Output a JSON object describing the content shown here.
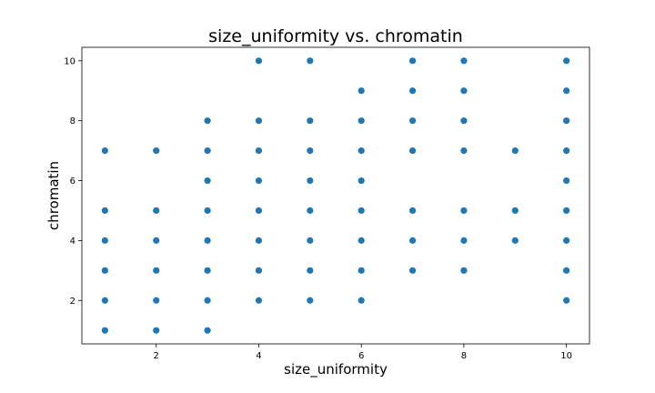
{
  "chart_data": {
    "type": "scatter",
    "title": "size_uniformity vs. chromatin",
    "xlabel": "size_uniformity",
    "ylabel": "chromatin",
    "xlim": [
      0.55,
      10.45
    ],
    "ylim": [
      0.55,
      10.45
    ],
    "x_ticks": [
      2,
      4,
      6,
      8,
      10
    ],
    "y_ticks": [
      2,
      4,
      6,
      8,
      10
    ],
    "x_tick_labels": [
      "2",
      "4",
      "6",
      "8",
      "10"
    ],
    "y_tick_labels": [
      "2",
      "4",
      "6",
      "8",
      "10"
    ],
    "grid": false,
    "legend": "none",
    "marker_color": "#1f77b4",
    "points": [
      [
        1,
        1
      ],
      [
        1,
        2
      ],
      [
        1,
        3
      ],
      [
        1,
        4
      ],
      [
        1,
        5
      ],
      [
        1,
        7
      ],
      [
        2,
        1
      ],
      [
        2,
        2
      ],
      [
        2,
        3
      ],
      [
        2,
        4
      ],
      [
        2,
        5
      ],
      [
        2,
        7
      ],
      [
        3,
        1
      ],
      [
        3,
        2
      ],
      [
        3,
        3
      ],
      [
        3,
        4
      ],
      [
        3,
        5
      ],
      [
        3,
        6
      ],
      [
        3,
        7
      ],
      [
        3,
        8
      ],
      [
        4,
        2
      ],
      [
        4,
        3
      ],
      [
        4,
        4
      ],
      [
        4,
        5
      ],
      [
        4,
        6
      ],
      [
        4,
        7
      ],
      [
        4,
        8
      ],
      [
        4,
        10
      ],
      [
        5,
        2
      ],
      [
        5,
        3
      ],
      [
        5,
        4
      ],
      [
        5,
        5
      ],
      [
        5,
        6
      ],
      [
        5,
        7
      ],
      [
        5,
        8
      ],
      [
        5,
        10
      ],
      [
        6,
        2
      ],
      [
        6,
        3
      ],
      [
        6,
        4
      ],
      [
        6,
        5
      ],
      [
        6,
        6
      ],
      [
        6,
        7
      ],
      [
        6,
        8
      ],
      [
        6,
        9
      ],
      [
        7,
        3
      ],
      [
        7,
        4
      ],
      [
        7,
        5
      ],
      [
        7,
        7
      ],
      [
        7,
        8
      ],
      [
        7,
        9
      ],
      [
        7,
        10
      ],
      [
        8,
        3
      ],
      [
        8,
        4
      ],
      [
        8,
        5
      ],
      [
        8,
        7
      ],
      [
        8,
        8
      ],
      [
        8,
        9
      ],
      [
        8,
        10
      ],
      [
        9,
        4
      ],
      [
        9,
        5
      ],
      [
        9,
        7
      ],
      [
        10,
        2
      ],
      [
        10,
        3
      ],
      [
        10,
        4
      ],
      [
        10,
        5
      ],
      [
        10,
        6
      ],
      [
        10,
        7
      ],
      [
        10,
        8
      ],
      [
        10,
        9
      ],
      [
        10,
        10
      ]
    ]
  }
}
